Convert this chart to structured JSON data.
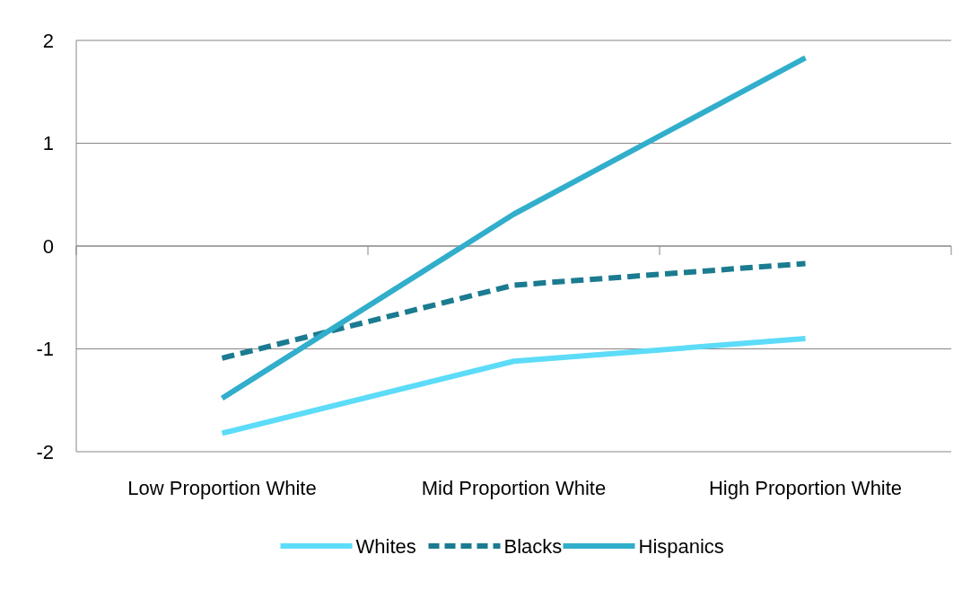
{
  "chart_data": {
    "type": "line",
    "categories": [
      "Low Proportion White",
      "Mid Proportion White",
      "High Proportion White"
    ],
    "series": [
      {
        "name": "Whites",
        "color": "#5cdcf8",
        "values": [
          -1.82,
          -1.12,
          -0.9
        ],
        "line_style": "solid"
      },
      {
        "name": "Blacks",
        "color": "#1b7b90",
        "values": [
          -1.09,
          -0.38,
          -0.17
        ],
        "line_style": "dashed"
      },
      {
        "name": "Hispanics",
        "color": "#31aecb",
        "values": [
          -1.48,
          0.31,
          1.83
        ],
        "line_style": "solid"
      }
    ],
    "ylim": [
      -2,
      2
    ],
    "yticks": [
      -2,
      -1,
      0,
      1,
      2
    ],
    "grid": "y",
    "legend": "bottom",
    "marker": "none"
  }
}
